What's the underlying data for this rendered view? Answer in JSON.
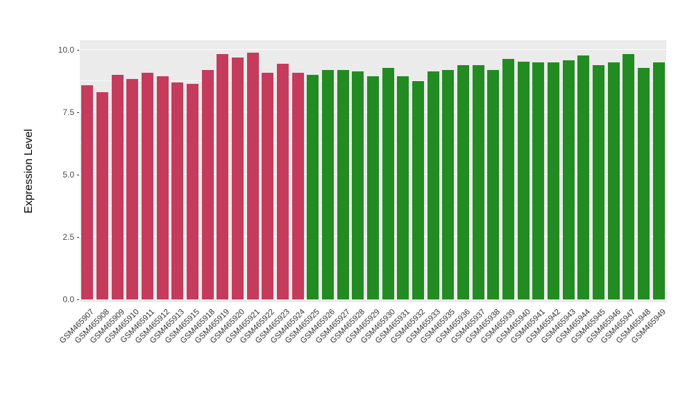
{
  "chart_data": {
    "type": "bar",
    "title": "",
    "xlabel": "",
    "ylabel": "Expression Level",
    "ylim": [
      -0.12,
      10.4
    ],
    "ytick_values": [
      0,
      2.5,
      5,
      7.5,
      10
    ],
    "ytick_labels": [
      "0.0",
      "2.5",
      "5.0",
      "7.5",
      "10.0"
    ],
    "ytick_minor_values": [
      1.25,
      3.75,
      6.25,
      8.75
    ],
    "legend": "none",
    "grid": "white major and minor horizontal lines on gray panel",
    "panel_background": "#EBEBEB",
    "colors": {
      "red": "#C53B5C",
      "green": "#228B22"
    },
    "bars": [
      {
        "label": "GSM465907",
        "value": 8.6,
        "group": "red"
      },
      {
        "label": "GSM465908",
        "value": 8.3,
        "group": "red"
      },
      {
        "label": "GSM465909",
        "value": 9.0,
        "group": "red"
      },
      {
        "label": "GSM465910",
        "value": 8.85,
        "group": "red"
      },
      {
        "label": "GSM465911",
        "value": 9.1,
        "group": "red"
      },
      {
        "label": "GSM465912",
        "value": 8.95,
        "group": "red"
      },
      {
        "label": "GSM465913",
        "value": 8.7,
        "group": "red"
      },
      {
        "label": "GSM465915",
        "value": 8.65,
        "group": "red"
      },
      {
        "label": "GSM465918",
        "value": 9.2,
        "group": "red"
      },
      {
        "label": "GSM465919",
        "value": 9.85,
        "group": "red"
      },
      {
        "label": "GSM465920",
        "value": 9.7,
        "group": "red"
      },
      {
        "label": "GSM465921",
        "value": 9.9,
        "group": "red"
      },
      {
        "label": "GSM465922",
        "value": 9.1,
        "group": "red"
      },
      {
        "label": "GSM465923",
        "value": 9.45,
        "group": "red"
      },
      {
        "label": "GSM465924",
        "value": 9.1,
        "group": "red"
      },
      {
        "label": "GSM465925",
        "value": 9.0,
        "group": "green"
      },
      {
        "label": "GSM465926",
        "value": 9.2,
        "group": "green"
      },
      {
        "label": "GSM465927",
        "value": 9.2,
        "group": "green"
      },
      {
        "label": "GSM465928",
        "value": 9.15,
        "group": "green"
      },
      {
        "label": "GSM465929",
        "value": 8.95,
        "group": "green"
      },
      {
        "label": "GSM465930",
        "value": 9.3,
        "group": "green"
      },
      {
        "label": "GSM465931",
        "value": 8.95,
        "group": "green"
      },
      {
        "label": "GSM465932",
        "value": 8.75,
        "group": "green"
      },
      {
        "label": "GSM465933",
        "value": 9.15,
        "group": "green"
      },
      {
        "label": "GSM465935",
        "value": 9.2,
        "group": "green"
      },
      {
        "label": "GSM465936",
        "value": 9.4,
        "group": "green"
      },
      {
        "label": "GSM465937",
        "value": 9.4,
        "group": "green"
      },
      {
        "label": "GSM465938",
        "value": 9.2,
        "group": "green"
      },
      {
        "label": "GSM465939",
        "value": 9.65,
        "group": "green"
      },
      {
        "label": "GSM465940",
        "value": 9.55,
        "group": "green"
      },
      {
        "label": "GSM465941",
        "value": 9.5,
        "group": "green"
      },
      {
        "label": "GSM465942",
        "value": 9.5,
        "group": "green"
      },
      {
        "label": "GSM465943",
        "value": 9.6,
        "group": "green"
      },
      {
        "label": "GSM465944",
        "value": 9.8,
        "group": "green"
      },
      {
        "label": "GSM465945",
        "value": 9.4,
        "group": "green"
      },
      {
        "label": "GSM465946",
        "value": 9.5,
        "group": "green"
      },
      {
        "label": "GSM465947",
        "value": 9.85,
        "group": "green"
      },
      {
        "label": "GSM465948",
        "value": 9.3,
        "group": "green"
      },
      {
        "label": "GSM465949",
        "value": 9.5,
        "group": "green"
      }
    ]
  }
}
